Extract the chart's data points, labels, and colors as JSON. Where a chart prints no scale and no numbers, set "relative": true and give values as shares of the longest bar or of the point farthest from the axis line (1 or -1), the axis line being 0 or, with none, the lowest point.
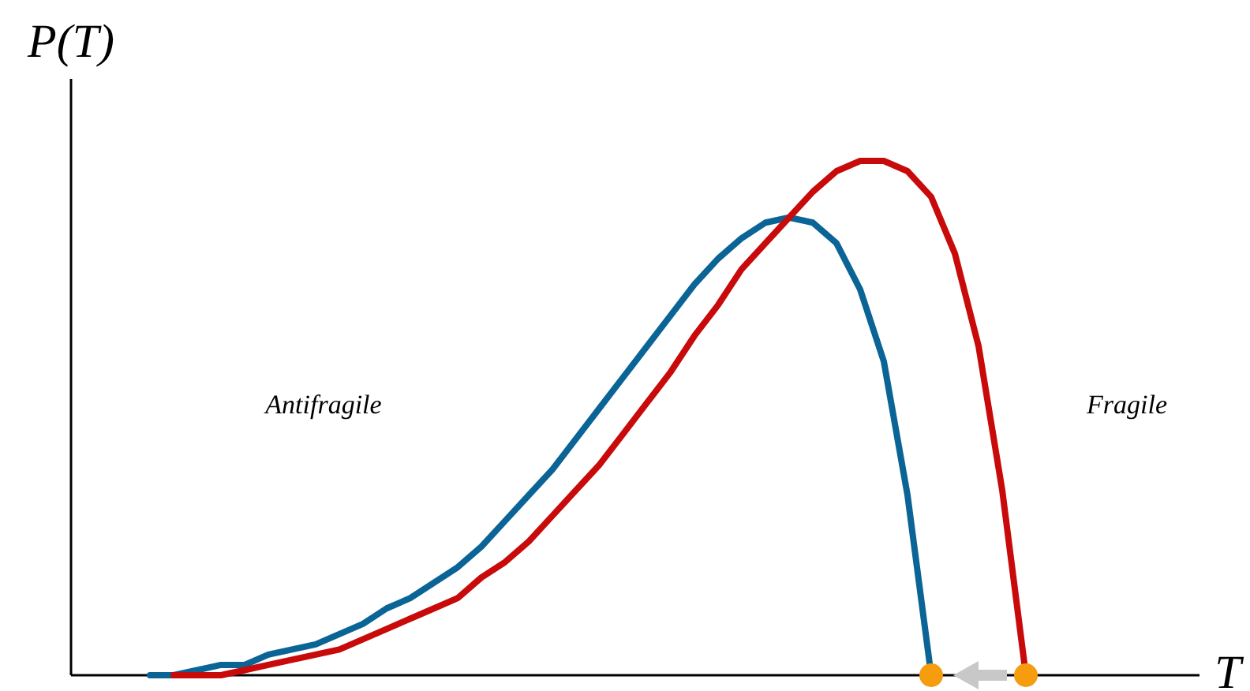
{
  "chart_data": {
    "type": "line",
    "relative": true,
    "xlabel": "T",
    "ylabel": "P(T)",
    "line_style": "solid",
    "marker": "none",
    "categories": [
      null,
      null,
      null,
      null,
      null,
      null,
      null,
      null,
      null,
      null,
      null,
      null,
      null,
      null,
      null,
      null,
      null,
      null,
      null,
      null,
      null,
      null,
      null,
      null,
      null,
      null,
      null,
      null,
      null,
      null,
      null,
      null,
      null,
      null,
      null,
      null,
      null,
      null,
      null,
      null,
      null,
      null,
      null,
      null,
      null,
      null,
      null,
      null
    ],
    "series": [
      {
        "color": "#0b6496",
        "values": [
          null,
          null,
          null,
          0,
          0.0,
          0.01,
          0.02,
          0.02,
          0.04,
          0.05,
          0.06,
          0.08,
          0.1,
          0.13,
          0.15,
          0.18,
          0.21,
          0.25,
          0.3,
          0.35,
          0.4,
          0.46,
          0.52,
          0.58,
          0.64,
          0.7,
          0.76,
          0.81,
          0.85,
          0.88,
          0.89,
          0.88,
          0.84,
          0.75,
          0.61,
          0.35,
          0,
          null,
          null,
          null,
          null,
          null,
          null,
          null,
          null,
          null,
          null,
          null
        ]
      },
      {
        "color": "#c80a0a",
        "values": [
          null,
          null,
          null,
          null,
          0,
          0,
          0.0,
          0.01,
          0.02,
          0.03,
          0.04,
          0.05,
          0.07,
          0.09,
          0.11,
          0.13,
          0.15,
          0.19,
          0.22,
          0.26,
          0.31,
          0.36,
          0.41,
          0.47,
          0.53,
          0.59,
          0.66,
          0.72,
          0.79,
          0.84,
          0.89,
          0.94,
          0.98,
          1.0,
          1.0,
          0.98,
          0.93,
          0.82,
          0.64,
          0.36,
          0,
          null,
          null,
          null,
          null,
          null,
          null,
          null
        ]
      }
    ],
    "annotations": [
      "Antifragile",
      "Fragile"
    ]
  }
}
